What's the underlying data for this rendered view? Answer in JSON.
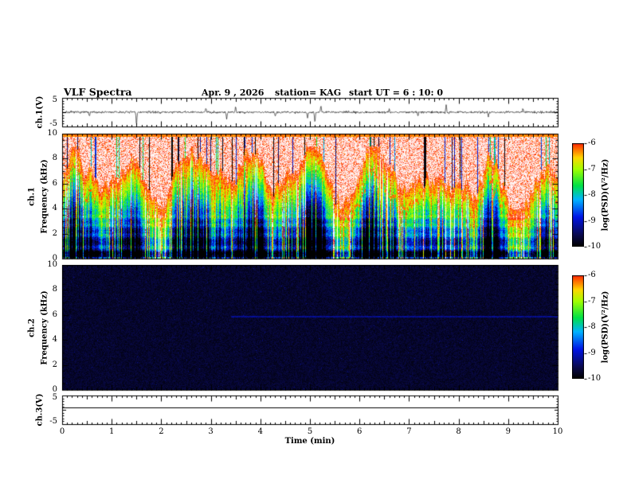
{
  "title": {
    "main": "VLF Spectra",
    "date": "Apr. 9 , 2026",
    "station": "station= KAG",
    "start_ut": "start UT =  6 : 10: 0"
  },
  "axes": {
    "x_label": "Time (min)",
    "x_ticks": [
      0,
      1,
      2,
      3,
      4,
      5,
      6,
      7,
      8,
      9,
      10
    ],
    "x_range": [
      0,
      10
    ]
  },
  "panels": {
    "ch1_wave": {
      "ylabel": "ch.1(V)",
      "yticks": [
        5,
        -5
      ]
    },
    "ch1_spec": {
      "channel_label": "ch.1",
      "ylabel": "Frequency (kHz)",
      "yticks": [
        10,
        8,
        6,
        4,
        2,
        0
      ]
    },
    "ch2_spec": {
      "channel_label": "ch.2",
      "ylabel": "Frequency (kHz)",
      "yticks": [
        10,
        8,
        6,
        4,
        2,
        0
      ]
    },
    "ch3_wave": {
      "ylabel": "ch.3(V)",
      "yticks": [
        5,
        -5
      ]
    }
  },
  "colorbar": {
    "label": "log(PSD)(V²/Hz)",
    "ticks": [
      -6,
      -7,
      -8,
      -9,
      -10
    ],
    "value_range": [
      -10,
      -6
    ],
    "stops": [
      [
        0.0,
        [
          0,
          0,
          0
        ]
      ],
      [
        0.1,
        [
          10,
          10,
          80
        ]
      ],
      [
        0.25,
        [
          0,
          20,
          230
        ]
      ],
      [
        0.4,
        [
          0,
          180,
          255
        ]
      ],
      [
        0.52,
        [
          0,
          225,
          70
        ]
      ],
      [
        0.66,
        [
          160,
          255,
          0
        ]
      ],
      [
        0.76,
        [
          255,
          215,
          0
        ]
      ],
      [
        0.88,
        [
          255,
          40,
          0
        ]
      ],
      [
        1.0,
        [
          255,
          255,
          255
        ]
      ]
    ]
  },
  "chart_data": [
    {
      "id": "ch1_waveform",
      "type": "line",
      "xlabel": "Time (min)",
      "x_range": [
        0,
        10
      ],
      "y_range": [
        -5,
        5
      ],
      "units": "V",
      "noise_amplitude": 0.4,
      "seed": 7,
      "spikes": [
        [
          0.55,
          -1.8
        ],
        [
          1.5,
          -4.6
        ],
        [
          2.9,
          1.6
        ],
        [
          3.32,
          -2.4
        ],
        [
          3.5,
          2.0
        ],
        [
          4.3,
          -1.4
        ],
        [
          4.95,
          -2.2
        ],
        [
          5.1,
          -3.9
        ],
        [
          5.22,
          2.4
        ],
        [
          6.6,
          1.2
        ],
        [
          7.18,
          -1.4
        ],
        [
          7.75,
          2.6
        ],
        [
          8.6,
          -1.6
        ],
        [
          9.3,
          1.4
        ]
      ]
    },
    {
      "id": "ch1_spectrogram",
      "type": "heatmap",
      "x_range": [
        0,
        10
      ],
      "f_range_khz": [
        0,
        10
      ],
      "psd_range_log": [
        -10,
        -6
      ],
      "seed": 1234,
      "summary": "intense broadband emission with wandering lower edge between ~4 and 9 kHz (white/red saturation above, red filament traces at edge), vertical green striations, banded blue/dark structure 0-4 kHz with enhanced bands near 0.9, 1.9, 2.7, 3.4 kHz and a bright line near 0 kHz"
    },
    {
      "id": "ch2_spectrogram",
      "type": "heatmap",
      "x_range": [
        0,
        10
      ],
      "f_range_khz": [
        0,
        10
      ],
      "psd_range_log": [
        -10,
        -6
      ],
      "seed": 99,
      "summary": "near noise floor (black) everywhere; extremely faint narrowband line near 5.9 kHz after t ≈ 3.5 min"
    },
    {
      "id": "ch3_waveform",
      "type": "line",
      "x_range": [
        0,
        10
      ],
      "y_range": [
        -5,
        5
      ],
      "units": "V",
      "constant_value": 1
    }
  ]
}
